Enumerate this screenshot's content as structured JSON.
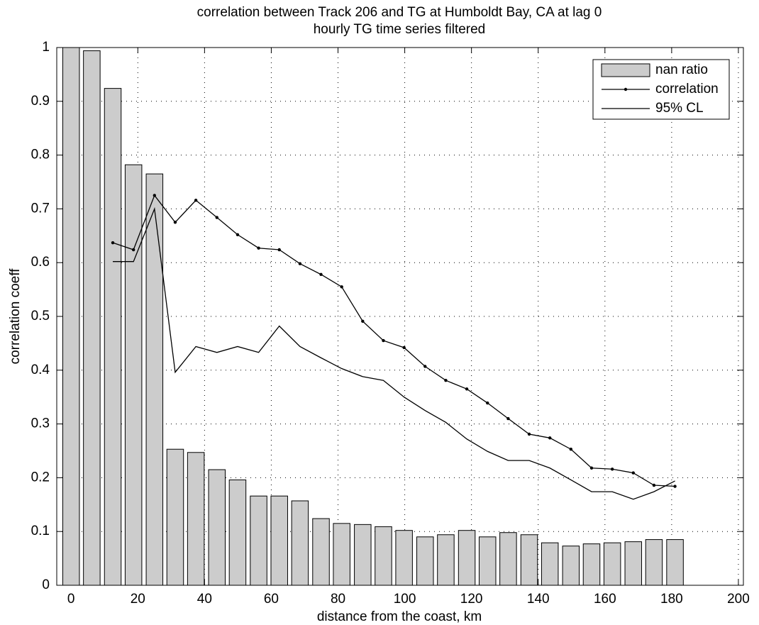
{
  "chart_data": {
    "type": "bar",
    "title": "correlation between Track 206 and TG at Humboldt Bay, CA at lag 0",
    "subtitle": "hourly TG time series filtered",
    "x_label": "distance from the coast, km",
    "y_label": "correlation coeff",
    "x": [
      0,
      6.2,
      12.5,
      18.7,
      25,
      31.2,
      37.4,
      43.7,
      49.9,
      56.2,
      62.4,
      68.6,
      74.9,
      81.1,
      87.4,
      93.6,
      99.8,
      106.1,
      112.3,
      118.6,
      124.8,
      131,
      137.3,
      143.5,
      149.8,
      156,
      162.2,
      168.5,
      174.7,
      181
    ],
    "series": [
      {
        "name": "nan ratio",
        "type": "bar",
        "color": "#cccccc",
        "values": [
          1.0,
          0.994,
          0.924,
          0.782,
          0.765,
          0.253,
          0.247,
          0.215,
          0.196,
          0.166,
          0.166,
          0.157,
          0.124,
          0.115,
          0.113,
          0.109,
          0.102,
          0.09,
          0.094,
          0.102,
          0.09,
          0.098,
          0.094,
          0.079,
          0.073,
          0.077,
          0.079,
          0.081,
          0.085,
          0.085
        ]
      },
      {
        "name": "correlation",
        "type": "line",
        "marker": true,
        "color": "#000000",
        "values": [
          null,
          null,
          0.637,
          0.624,
          0.725,
          0.675,
          0.716,
          0.684,
          0.652,
          0.627,
          0.624,
          0.598,
          0.578,
          0.555,
          0.491,
          0.455,
          0.442,
          0.407,
          0.381,
          0.365,
          0.339,
          0.31,
          0.281,
          0.274,
          0.253,
          0.218,
          0.216,
          0.209,
          0.186,
          0.184
        ]
      },
      {
        "name": "95% CL",
        "type": "line",
        "marker": false,
        "color": "#000000",
        "values": [
          null,
          null,
          0.602,
          0.602,
          0.7,
          0.396,
          0.444,
          0.433,
          0.444,
          0.433,
          0.482,
          0.444,
          0.423,
          0.403,
          0.388,
          0.381,
          0.35,
          0.325,
          0.303,
          0.272,
          0.249,
          0.232,
          0.232,
          0.218,
          0.196,
          0.174,
          0.174,
          0.16,
          0.174,
          0.194
        ]
      }
    ],
    "xlim": [
      -4.3,
      201.5
    ],
    "ylim": [
      0,
      1
    ],
    "xticks": [
      0,
      20,
      40,
      60,
      80,
      100,
      120,
      140,
      160,
      180,
      200
    ],
    "yticks": [
      0,
      0.1,
      0.2,
      0.3,
      0.4,
      0.5,
      0.6,
      0.7,
      0.8,
      0.9,
      1
    ],
    "grid": true,
    "legend": "top-right"
  }
}
